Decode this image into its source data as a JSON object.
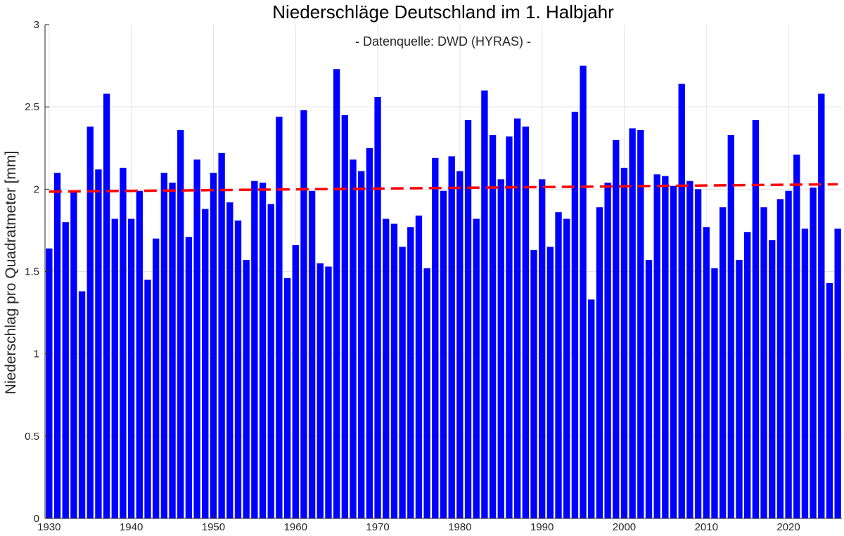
{
  "chart_data": {
    "type": "bar",
    "title": "Niederschläge Deutschland im 1. Halbjahr",
    "subtitle": "- Datenquelle: DWD (HYRAS) -",
    "xlabel": "",
    "ylabel": "Niederschlag pro Quadratmeter [mm]",
    "xlim": [
      1929.5,
      2026.5
    ],
    "ylim": [
      0,
      3
    ],
    "xticks": [
      1930,
      1940,
      1950,
      1960,
      1970,
      1980,
      1990,
      2000,
      2010,
      2020
    ],
    "yticks": [
      0,
      0.5,
      1,
      1.5,
      2,
      2.5,
      3
    ],
    "ytick_labels": [
      "0",
      "0.5",
      "1",
      "1.5",
      "2",
      "2.5",
      "3"
    ],
    "grid": true,
    "bar_color": "#0000ff",
    "trend_color": "#ff0000",
    "x": [
      1930,
      1931,
      1932,
      1933,
      1934,
      1935,
      1936,
      1937,
      1938,
      1939,
      1940,
      1941,
      1942,
      1943,
      1944,
      1945,
      1946,
      1947,
      1948,
      1949,
      1950,
      1951,
      1952,
      1953,
      1954,
      1955,
      1956,
      1957,
      1958,
      1959,
      1960,
      1961,
      1962,
      1963,
      1964,
      1965,
      1966,
      1967,
      1968,
      1969,
      1970,
      1971,
      1972,
      1973,
      1974,
      1975,
      1976,
      1977,
      1978,
      1979,
      1980,
      1981,
      1982,
      1983,
      1984,
      1985,
      1986,
      1987,
      1988,
      1989,
      1990,
      1991,
      1992,
      1993,
      1994,
      1995,
      1996,
      1997,
      1998,
      1999,
      2000,
      2001,
      2002,
      2003,
      2004,
      2005,
      2006,
      2007,
      2008,
      2009,
      2010,
      2011,
      2012,
      2013,
      2014,
      2015,
      2016,
      2017,
      2018,
      2019,
      2020,
      2021,
      2022,
      2023,
      2024,
      2025,
      2026
    ],
    "values": [
      1.64,
      2.1,
      1.8,
      1.99,
      1.38,
      2.38,
      2.12,
      2.58,
      1.82,
      2.13,
      1.82,
      1.99,
      1.45,
      1.7,
      2.1,
      2.04,
      2.36,
      1.71,
      2.18,
      1.88,
      2.1,
      2.22,
      1.92,
      1.81,
      1.57,
      2.05,
      2.04,
      1.91,
      2.44,
      1.46,
      1.66,
      2.48,
      1.99,
      1.55,
      1.53,
      2.73,
      2.45,
      2.18,
      2.11,
      2.25,
      2.56,
      1.82,
      1.79,
      1.65,
      1.77,
      1.84,
      1.52,
      2.19,
      1.99,
      2.2,
      2.11,
      2.42,
      1.82,
      2.6,
      2.33,
      2.06,
      2.32,
      2.43,
      2.38,
      1.63,
      2.06,
      1.65,
      1.86,
      1.82,
      2.47,
      2.75,
      1.33,
      1.89,
      2.04,
      2.3,
      2.13,
      2.37,
      2.36,
      1.57,
      2.09,
      2.08,
      2.02,
      2.64,
      2.05,
      2.0,
      1.77,
      1.52,
      1.89,
      2.33,
      1.57,
      1.74,
      2.42,
      1.89,
      1.69,
      1.94,
      1.99,
      2.21,
      1.76,
      2.01,
      2.58,
      1.43,
      1.76
    ],
    "trend": {
      "x": [
        1930,
        2026
      ],
      "y": [
        1.985,
        2.03
      ]
    }
  }
}
